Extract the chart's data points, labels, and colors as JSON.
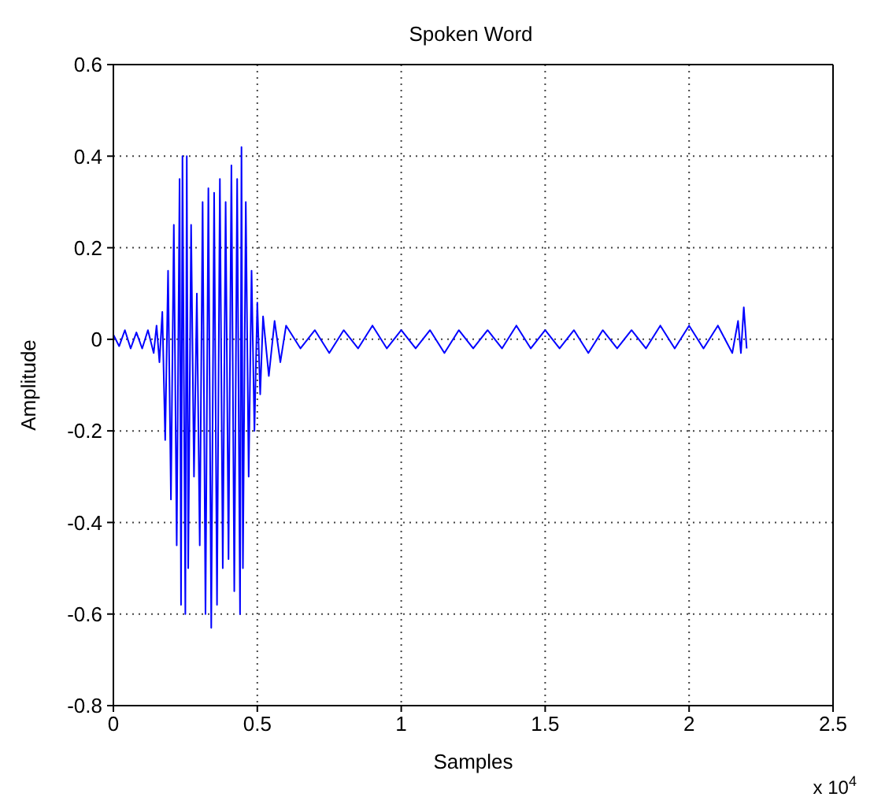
{
  "chart_data": {
    "type": "line",
    "title": "Spoken Word",
    "xlabel": "Samples",
    "ylabel": "Amplitude",
    "annotations": [
      "x 10$^{4}$"
    ],
    "xlim": [
      0,
      2.5
    ],
    "xticks": [
      0,
      0.5,
      1,
      1.5,
      2,
      2.5
    ],
    "ylim": [
      -0.8,
      0.6
    ],
    "yticks": [
      -0.8,
      -0.6,
      -0.4,
      -0.2,
      0,
      0.2,
      0.4,
      0.6
    ],
    "grid": true,
    "marker": "none",
    "line_style": "solid",
    "series": [
      {
        "color": "#0000ff",
        "x": [
          0,
          0.02,
          0.04,
          0.06,
          0.08,
          0.1,
          0.12,
          0.14,
          0.15,
          0.16,
          0.17,
          0.18,
          0.19,
          0.2,
          0.21,
          0.22,
          0.23,
          0.235,
          0.24,
          0.25,
          0.255,
          0.26,
          0.27,
          0.28,
          0.29,
          0.3,
          0.31,
          0.32,
          0.33,
          0.34,
          0.35,
          0.36,
          0.37,
          0.38,
          0.39,
          0.4,
          0.41,
          0.42,
          0.43,
          0.44,
          0.445,
          0.45,
          0.46,
          0.47,
          0.48,
          0.49,
          0.5,
          0.51,
          0.52,
          0.54,
          0.56,
          0.58,
          0.6,
          0.65,
          0.7,
          0.75,
          0.8,
          0.85,
          0.9,
          0.95,
          1,
          1.05,
          1.1,
          1.15,
          1.2,
          1.25,
          1.3,
          1.35,
          1.4,
          1.45,
          1.5,
          1.55,
          1.6,
          1.65,
          1.7,
          1.75,
          1.8,
          1.85,
          1.9,
          1.95,
          2,
          2.05,
          2.1,
          2.15,
          2.17,
          2.18,
          2.19,
          2.2
        ],
        "values": [
          0.01,
          -0.015,
          0.02,
          -0.02,
          0.015,
          -0.02,
          0.02,
          -0.03,
          0.03,
          -0.05,
          0.06,
          -0.22,
          0.15,
          -0.35,
          0.25,
          -0.45,
          0.35,
          -0.58,
          0.4,
          -0.6,
          0.4,
          -0.5,
          0.25,
          -0.3,
          0.1,
          -0.45,
          0.3,
          -0.6,
          0.33,
          -0.63,
          0.32,
          -0.58,
          0.35,
          -0.5,
          0.3,
          -0.48,
          0.38,
          -0.55,
          0.35,
          -0.6,
          0.42,
          -0.5,
          0.3,
          -0.3,
          0.15,
          -0.2,
          0.08,
          -0.12,
          0.05,
          -0.08,
          0.04,
          -0.05,
          0.03,
          -0.02,
          0.02,
          -0.03,
          0.02,
          -0.02,
          0.03,
          -0.02,
          0.02,
          -0.02,
          0.02,
          -0.03,
          0.02,
          -0.02,
          0.02,
          -0.02,
          0.03,
          -0.02,
          0.02,
          -0.02,
          0.02,
          -0.03,
          0.02,
          -0.02,
          0.02,
          -0.02,
          0.03,
          -0.02,
          0.03,
          -0.02,
          0.03,
          -0.03,
          0.04,
          -0.03,
          0.07,
          -0.02
        ]
      }
    ]
  }
}
